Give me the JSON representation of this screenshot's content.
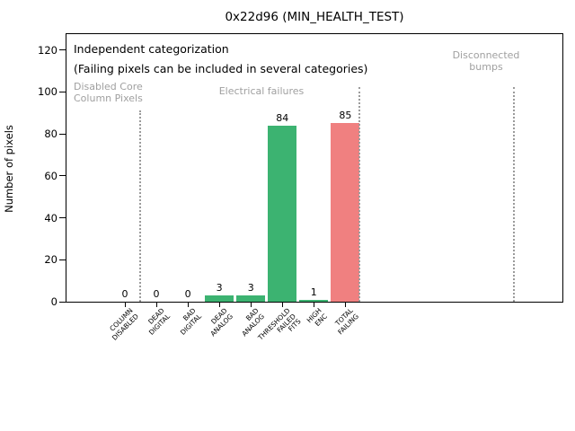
{
  "chart_data": {
    "type": "bar",
    "title": "0x22d96 (MIN_HEALTH_TEST)",
    "ylabel": "Number of pixels",
    "xlabel": "",
    "ylim": [
      0,
      128
    ],
    "yticks": [
      0,
      20,
      40,
      60,
      80,
      100,
      120
    ],
    "grid": false,
    "legend": null,
    "categories": [
      [
        "COLUMN",
        "DISABLED"
      ],
      [
        "DEAD",
        "DIGITAL"
      ],
      [
        "BAD",
        "DIGITAL"
      ],
      [
        "DEAD",
        "ANALOG"
      ],
      [
        "BAD",
        "ANALOG"
      ],
      [
        "THRESHOLD",
        "FAILED",
        "FITS"
      ],
      [
        "HIGH",
        "ENC"
      ],
      [
        "TOTAL",
        "FAILING"
      ]
    ],
    "values": [
      0,
      0,
      0,
      3,
      3,
      84,
      1,
      85
    ],
    "value_labels": [
      "0",
      "0",
      "0",
      "3",
      "3",
      "84",
      "1",
      "85"
    ],
    "bar_colors": [
      "#3cb371",
      "#3cb371",
      "#3cb371",
      "#3cb371",
      "#3cb371",
      "#3cb371",
      "#3cb371",
      "#f08080"
    ],
    "colors": {
      "bar_green": "#3cb371",
      "bar_red": "#f08080",
      "muted_gray": "#a0a0a0",
      "separator_gray": "#9b9b9b",
      "axis_black": "#000000"
    },
    "annotations": [
      {
        "name": "note-independent-categorization",
        "lines": [
          "Independent categorization"
        ],
        "x": 82,
        "y": 47,
        "color": "#000000",
        "size": 12.5,
        "align": "left"
      },
      {
        "name": "note-failing-pixels",
        "lines": [
          "(Failing pixels can be included in several categories)"
        ],
        "x": 82,
        "y": 69,
        "color": "#000000",
        "size": 12.5,
        "align": "left"
      },
      {
        "name": "group-label-disabled-core-column-pixels",
        "lines": [
          "Disabled Core",
          "Column Pixels"
        ],
        "x": 82,
        "y": 90,
        "color": "#a0a0a0",
        "size": 11,
        "align": "left"
      },
      {
        "name": "group-label-electrical-failures",
        "lines": [
          "Electrical failures"
        ],
        "x": 291,
        "y": 95,
        "color": "#a0a0a0",
        "size": 11,
        "align": "center"
      },
      {
        "name": "group-label-disconnected-bumps",
        "lines": [
          "Disconnected",
          "bumps"
        ],
        "x": 541,
        "y": 55,
        "color": "#a0a0a0",
        "size": 11,
        "align": "center"
      }
    ],
    "separators": [
      {
        "x": 156,
        "y_top": 123
      },
      {
        "x": 400,
        "y_top": 97
      },
      {
        "x": 572,
        "y_top": 97
      }
    ]
  }
}
